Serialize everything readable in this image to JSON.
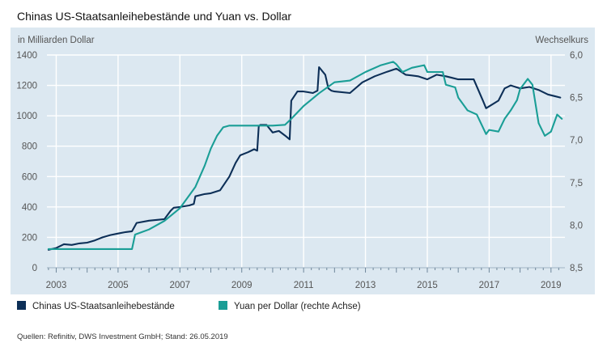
{
  "title": "Chinas US-Staatsanleihebestände und Yuan vs. Dollar",
  "source": "Quellen: Refinitiv, DWS Investment GmbH; Stand: 26.05.2019",
  "colors": {
    "panel_bg": "#dce8f1",
    "holdings": "#0d2f57",
    "yuan": "#1a9e96",
    "grid": "#ffffff",
    "axis_text": "#555555"
  },
  "chart_data": {
    "type": "line",
    "left_axis": {
      "label": "in Milliarden Dollar",
      "ticks": [
        "1400",
        "1200",
        "1000",
        "800",
        "600",
        "400",
        "200",
        "0"
      ],
      "ylim": [
        0,
        1400
      ]
    },
    "right_axis": {
      "label": "Wechselkurs",
      "ticks": [
        "6,0",
        "6,5",
        "7,0",
        "7,5",
        "8,0",
        "8,5"
      ],
      "ylim": [
        8.5,
        6.0
      ],
      "inverted": true
    },
    "x_ticks": [
      "2003",
      "2005",
      "2007",
      "2009",
      "2011",
      "2013",
      "2015",
      "2017",
      "2019"
    ],
    "x_tick_years": [
      2003,
      2005,
      2007,
      2009,
      2011,
      2013,
      2015,
      2017,
      2019
    ],
    "xlim": [
      2002.7,
      2019.45
    ],
    "grid": true,
    "series": [
      {
        "name": "Chinas US-Staatsanleihebestände",
        "axis": "left",
        "x": [
          2002.75,
          2003.0,
          2003.25,
          2003.5,
          2003.75,
          2004.0,
          2004.25,
          2004.5,
          2004.75,
          2005.0,
          2005.25,
          2005.45,
          2005.6,
          2006.0,
          2006.5,
          2006.7,
          2006.8,
          2007.0,
          2007.3,
          2007.45,
          2007.5,
          2007.8,
          2008.0,
          2008.3,
          2008.6,
          2008.8,
          2008.95,
          2009.2,
          2009.4,
          2009.5,
          2009.55,
          2009.6,
          2009.8,
          2010.0,
          2010.2,
          2010.4,
          2010.55,
          2010.6,
          2010.8,
          2011.0,
          2011.3,
          2011.45,
          2011.5,
          2011.7,
          2011.8,
          2011.9,
          2012.0,
          2012.5,
          2012.9,
          2013.3,
          2013.7,
          2014.0,
          2014.3,
          2014.7,
          2015.0,
          2015.3,
          2015.6,
          2015.8,
          2016.0,
          2016.5,
          2016.8,
          2016.9,
          2017.3,
          2017.5,
          2017.7,
          2018.0,
          2018.3,
          2018.6,
          2018.9,
          2019.1,
          2019.3
        ],
        "values": [
          118,
          130,
          155,
          150,
          160,
          165,
          180,
          200,
          215,
          225,
          235,
          240,
          295,
          310,
          320,
          375,
          395,
          400,
          410,
          420,
          470,
          485,
          490,
          510,
          600,
          690,
          740,
          760,
          780,
          770,
          930,
          940,
          940,
          890,
          900,
          870,
          845,
          1100,
          1160,
          1160,
          1150,
          1165,
          1320,
          1270,
          1180,
          1165,
          1160,
          1150,
          1220,
          1260,
          1290,
          1310,
          1270,
          1260,
          1240,
          1270,
          1260,
          1250,
          1240,
          1240,
          1100,
          1050,
          1100,
          1180,
          1200,
          1180,
          1190,
          1170,
          1140,
          1130,
          1120
        ]
      },
      {
        "name": "Yuan per Dollar (rechte Achse)",
        "axis": "right",
        "x": [
          2002.75,
          2003.0,
          2004.0,
          2005.0,
          2005.45,
          2005.55,
          2006.0,
          2006.5,
          2007.0,
          2007.5,
          2007.8,
          2008.0,
          2008.2,
          2008.4,
          2008.6,
          2009.0,
          2009.5,
          2010.0,
          2010.4,
          2010.6,
          2011.0,
          2011.5,
          2012.0,
          2012.5,
          2013.0,
          2013.5,
          2013.9,
          2014.0,
          2014.2,
          2014.5,
          2014.9,
          2015.0,
          2015.5,
          2015.6,
          2015.9,
          2016.0,
          2016.3,
          2016.6,
          2016.9,
          2017.0,
          2017.3,
          2017.5,
          2017.7,
          2017.9,
          2018.0,
          2018.25,
          2018.4,
          2018.6,
          2018.8,
          2019.0,
          2019.2,
          2019.35
        ],
        "values": [
          8.28,
          8.28,
          8.28,
          8.28,
          8.28,
          8.11,
          8.05,
          7.95,
          7.8,
          7.55,
          7.3,
          7.1,
          6.95,
          6.85,
          6.83,
          6.83,
          6.83,
          6.83,
          6.82,
          6.75,
          6.6,
          6.45,
          6.32,
          6.3,
          6.2,
          6.12,
          6.08,
          6.11,
          6.2,
          6.15,
          6.12,
          6.2,
          6.2,
          6.35,
          6.38,
          6.5,
          6.65,
          6.7,
          6.93,
          6.88,
          6.9,
          6.75,
          6.65,
          6.53,
          6.4,
          6.28,
          6.35,
          6.8,
          6.95,
          6.9,
          6.7,
          6.75
        ]
      }
    ],
    "legend": [
      "Chinas US-Staatsanleihebestände",
      "Yuan per Dollar (rechte Achse)"
    ],
    "legend_position": "bottom"
  }
}
